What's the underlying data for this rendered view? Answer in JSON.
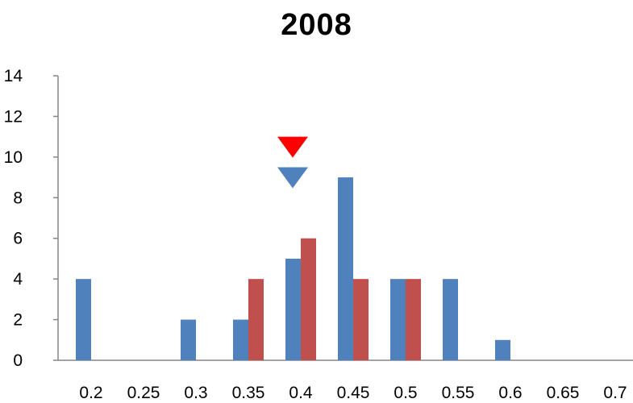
{
  "chart_data": {
    "type": "bar",
    "title": "2008",
    "xlabel": "",
    "ylabel": "",
    "categories": [
      "0.2",
      "0.25",
      "0.3",
      "0.35",
      "0.4",
      "0.45",
      "0.5",
      "0.55",
      "0.6",
      "0.65",
      "0.7"
    ],
    "series": [
      {
        "color": "#4f81bd",
        "values": [
          4,
          0,
          2,
          2,
          5,
          9,
          4,
          4,
          1,
          0,
          0
        ]
      },
      {
        "color": "#c0504d",
        "values": [
          0,
          0,
          0,
          4,
          6,
          4,
          4,
          0,
          0,
          0,
          0
        ]
      }
    ],
    "ylim": [
      0,
      14
    ],
    "yticks": [
      "0",
      "2",
      "4",
      "6",
      "8",
      "10",
      "12",
      "14"
    ],
    "grid": false,
    "legend": "none",
    "annotations": [
      {
        "type": "down-triangle-marker",
        "color": "#ff0000",
        "x": 0.4,
        "y": 11
      },
      {
        "type": "down-triangle-marker",
        "color": "#4f81bd",
        "x": 0.4,
        "y": 9.5
      }
    ]
  }
}
